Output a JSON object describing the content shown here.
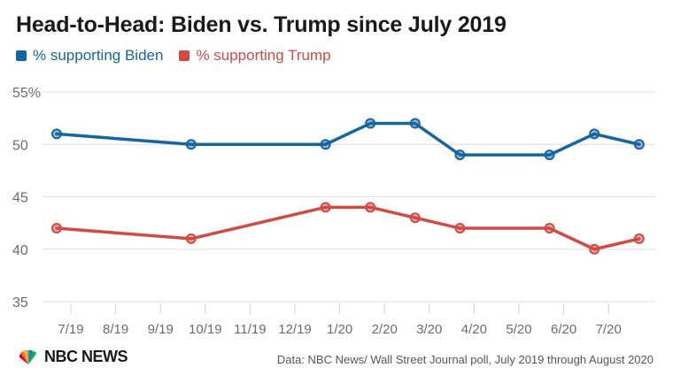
{
  "chart_data": {
    "type": "line",
    "title": "Head-to-Head: Biden vs. Trump since July 2019",
    "x_tick_labels": [
      "7/19",
      "8/19",
      "9/19",
      "10/19",
      "11/19",
      "12/19",
      "1/20",
      "2/20",
      "3/20",
      "4/20",
      "5/20",
      "6/20",
      "7/20"
    ],
    "y_ticks": [
      35,
      40,
      45,
      50,
      55
    ],
    "y_tick_labels": [
      "35",
      "40",
      "45",
      "50",
      "55%"
    ],
    "ylim": [
      35,
      55
    ],
    "x_range": [
      "2019-07",
      "2020-08"
    ],
    "grid": true,
    "legend_position": "top-left",
    "x": [
      "2019-07",
      "2019-10",
      "2020-01",
      "2020-02",
      "2020-03",
      "2020-04",
      "2020-06",
      "2020-07",
      "2020-08"
    ],
    "series": [
      {
        "name": "% supporting Biden",
        "color": "#1565a1",
        "values": [
          51,
          50,
          50,
          52,
          52,
          49,
          49,
          51,
          50
        ]
      },
      {
        "name": "% supporting Trump",
        "color": "#d14a44",
        "values": [
          42,
          41,
          44,
          44,
          43,
          42,
          42,
          40,
          41
        ]
      }
    ]
  },
  "logo": {
    "text": "NBC NEWS",
    "icon": "peacock-icon"
  },
  "source": "Data: NBC News/ Wall Street Journal poll, July 2019 through August 2020"
}
